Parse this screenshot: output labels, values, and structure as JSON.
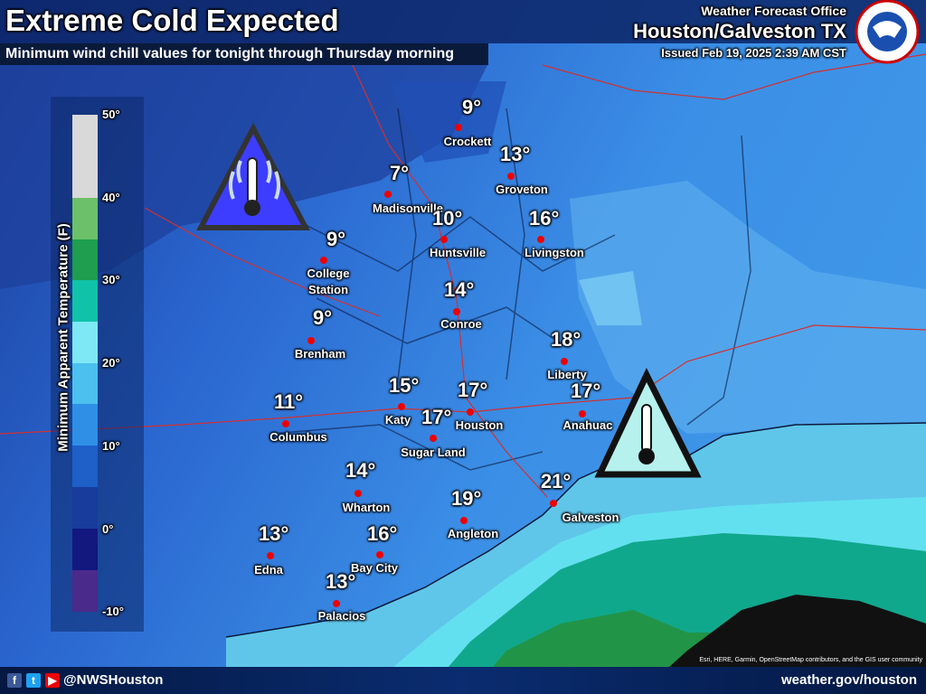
{
  "header": {
    "title": "Extreme Cold Expected",
    "subtitle": "Minimum wind chill values for tonight through Thursday morning",
    "office": "Weather Forecast Office",
    "location": "Houston/Galveston TX",
    "issued": "Issued Feb 19, 2025 2:39 AM CST"
  },
  "legend": {
    "title": "Minimum Apparent Temperature (F)",
    "ticks": [
      "50°",
      "40°",
      "30°",
      "20°",
      "10°",
      "0°",
      "-10°"
    ]
  },
  "cities": [
    {
      "name": "Crockett",
      "temp": "9°"
    },
    {
      "name": "Groveton",
      "temp": "13°"
    },
    {
      "name": "Madisonville",
      "temp": "7°"
    },
    {
      "name": "Huntsville",
      "temp": "10°"
    },
    {
      "name": "Livingston",
      "temp": "16°"
    },
    {
      "name": "College Station",
      "temp": "9°"
    },
    {
      "name": "Conroe",
      "temp": "14°"
    },
    {
      "name": "Brenham",
      "temp": "9°"
    },
    {
      "name": "Liberty",
      "temp": "18°"
    },
    {
      "name": "Katy",
      "temp": "15°"
    },
    {
      "name": "Houston",
      "temp": "17°"
    },
    {
      "name": "Anahuac",
      "temp": "17°"
    },
    {
      "name": "Columbus",
      "temp": "11°"
    },
    {
      "name": "Sugar Land",
      "temp": "17°"
    },
    {
      "name": "Wharton",
      "temp": "14°"
    },
    {
      "name": "Galveston",
      "temp": "21°"
    },
    {
      "name": "Angleton",
      "temp": "19°"
    },
    {
      "name": "Edna",
      "temp": "13°"
    },
    {
      "name": "Bay City",
      "temp": "16°"
    },
    {
      "name": "Palacios",
      "temp": "13°"
    }
  ],
  "footer": {
    "handle": "@NWSHouston",
    "website": "weather.gov/houston",
    "attribution": "Esri, HERE, Garmin, OpenStreetMap contributors, and the GIS user community"
  }
}
